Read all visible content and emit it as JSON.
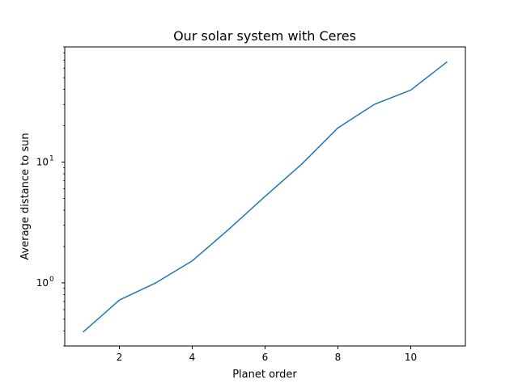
{
  "chart_data": {
    "type": "line",
    "title": "Our solar system with Ceres",
    "xlabel": "Planet order",
    "ylabel": "Average distance to sun",
    "x": [
      1,
      2,
      3,
      4,
      5,
      6,
      7,
      8,
      9,
      10,
      11
    ],
    "series": [
      {
        "values": [
          0.39,
          0.72,
          1.0,
          1.52,
          2.77,
          5.2,
          9.58,
          19.2,
          30.05,
          39.48,
          67.7
        ],
        "color": "#1f77b4"
      }
    ],
    "xlim": [
      0.5,
      11.5
    ],
    "ylim": [
      0.3,
      90
    ],
    "yscale": "log",
    "xticks": [
      2,
      4,
      6,
      8,
      10
    ],
    "yticks": [
      {
        "value": 1,
        "label": "10",
        "exp": "0"
      },
      {
        "value": 10,
        "label": "10",
        "exp": "1"
      }
    ],
    "grid": false,
    "legend": "none"
  }
}
